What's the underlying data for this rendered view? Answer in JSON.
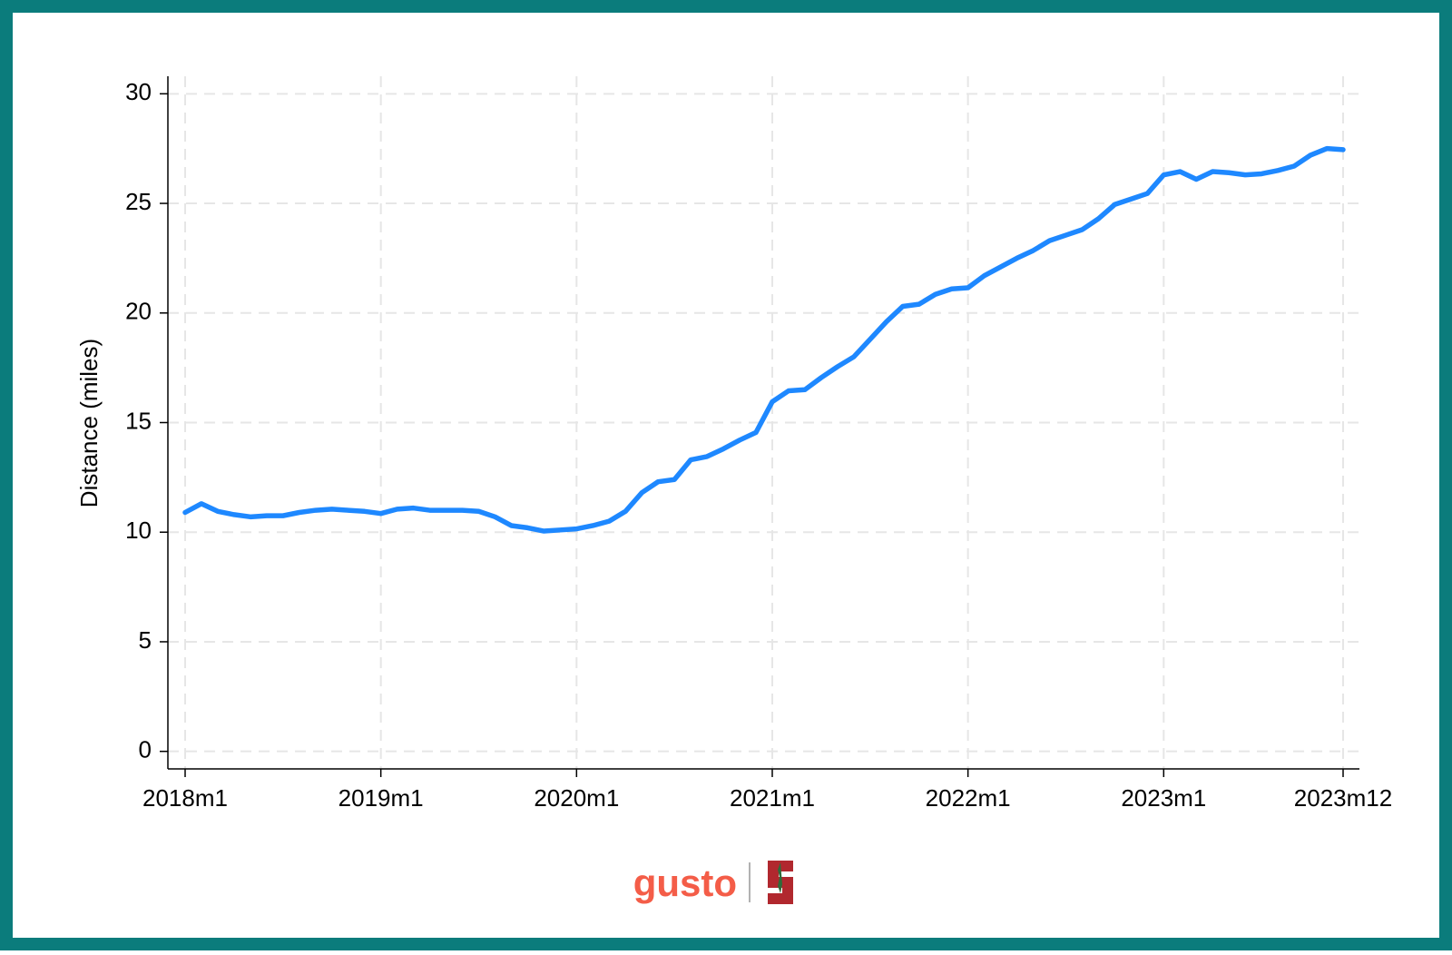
{
  "chart_data": {
    "type": "line",
    "y_label": "Distance (miles)",
    "categories": [
      "2018m1",
      null,
      null,
      null,
      null,
      null,
      null,
      null,
      null,
      null,
      null,
      null,
      "2019m1",
      null,
      null,
      null,
      null,
      null,
      null,
      null,
      null,
      null,
      null,
      null,
      "2020m1",
      null,
      null,
      null,
      null,
      null,
      null,
      null,
      null,
      null,
      null,
      null,
      "2021m1",
      null,
      null,
      null,
      null,
      null,
      null,
      null,
      null,
      null,
      null,
      null,
      "2022m1",
      null,
      null,
      null,
      null,
      null,
      null,
      null,
      null,
      null,
      null,
      null,
      "2023m1",
      null,
      null,
      null,
      null,
      null,
      null,
      null,
      null,
      null,
      null,
      "2023m12"
    ],
    "values": [
      10.9,
      11.3,
      10.95,
      10.8,
      10.7,
      10.75,
      10.75,
      10.9,
      11.0,
      11.05,
      11.0,
      10.95,
      10.85,
      11.05,
      11.1,
      11.0,
      11.0,
      11.0,
      10.95,
      10.7,
      10.3,
      10.2,
      10.05,
      10.1,
      10.15,
      10.3,
      10.5,
      10.95,
      11.8,
      12.3,
      12.4,
      13.3,
      13.45,
      13.8,
      14.2,
      14.55,
      15.95,
      16.45,
      16.5,
      17.05,
      17.55,
      18.0,
      18.8,
      19.6,
      20.3,
      20.4,
      20.85,
      21.1,
      21.15,
      21.7,
      22.1,
      22.5,
      22.85,
      23.3,
      23.55,
      23.8,
      24.3,
      24.95,
      25.2,
      25.45,
      26.3,
      26.45,
      26.1,
      26.45,
      26.4,
      26.3,
      26.35,
      26.5,
      26.7,
      27.2,
      27.5,
      27.45
    ],
    "color": "#1e88ff",
    "ylim": [
      -0.8,
      30.8
    ],
    "yticks": [
      0,
      5,
      10,
      15,
      20,
      25,
      30
    ],
    "grid": true
  },
  "footer": {
    "logo_text": "gusto"
  }
}
